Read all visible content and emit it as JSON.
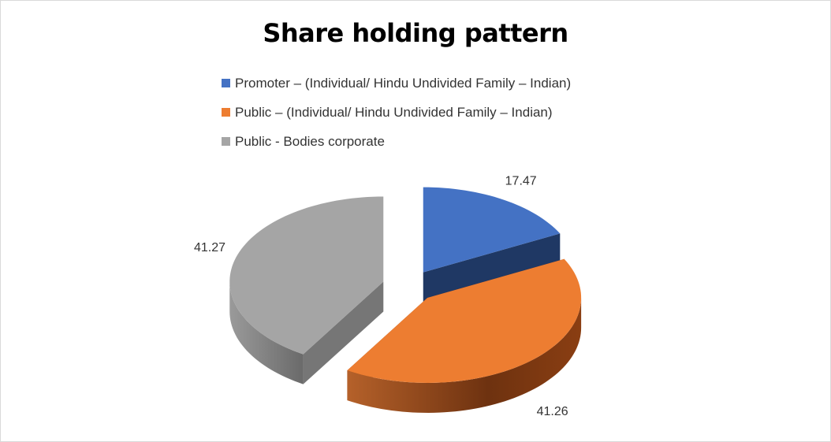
{
  "chart_data": {
    "type": "pie",
    "style": "3d-exploded",
    "title": "Share holding pattern",
    "legend_position": "top",
    "categories": [
      "Promoter – (Individual/ Hindu Undivided Family – Indian)",
      "Public  – (Individual/ Hindu Undivided Family – Indian)",
      "Public - Bodies corporate"
    ],
    "values": [
      17.47,
      41.26,
      41.27
    ],
    "data_labels": [
      "17.47",
      "41.26",
      "41.27"
    ],
    "colors": [
      "#4472C4",
      "#ED7D31",
      "#A5A5A5"
    ],
    "side_colors": [
      "#1F3864",
      "#843C0C",
      "#767676"
    ]
  }
}
